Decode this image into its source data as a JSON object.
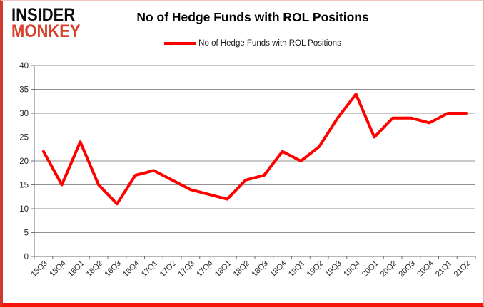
{
  "branding": {
    "logo_line1": "INSIDER",
    "logo_line2": "MONKEY",
    "logo_color": "#d7422c"
  },
  "header": {
    "title": "No of Hedge Funds with ROL Positions"
  },
  "legend": {
    "label": "No of Hedge Funds with ROL Positions",
    "line_color": "#ff0000"
  },
  "chart_data": {
    "type": "line",
    "title": "No of Hedge Funds with ROL Positions",
    "categories": [
      "15Q3",
      "15Q4",
      "16Q1",
      "16Q2",
      "16Q3",
      "16Q4",
      "17Q1",
      "17Q2",
      "17Q3",
      "17Q4",
      "18Q1",
      "18Q2",
      "18Q3",
      "18Q4",
      "19Q1",
      "19Q2",
      "19Q3",
      "19Q4",
      "20Q1",
      "20Q2",
      "20Q3",
      "20Q4",
      "21Q1",
      "21Q2"
    ],
    "series": [
      {
        "name": "No of Hedge Funds with ROL Positions",
        "color": "#ff0000",
        "values": [
          22,
          15,
          24,
          15,
          11,
          17,
          18,
          16,
          14,
          13,
          12,
          16,
          17,
          22,
          20,
          23,
          29,
          34,
          25,
          29,
          29,
          28,
          30,
          30
        ]
      }
    ],
    "ylim": [
      0,
      40
    ],
    "ytick_step": 5,
    "grid": "horizontal",
    "legend_position": "top"
  },
  "colors": {
    "gridline": "#909090",
    "axis": "#6e6e6e",
    "tick_label": "#262626"
  }
}
